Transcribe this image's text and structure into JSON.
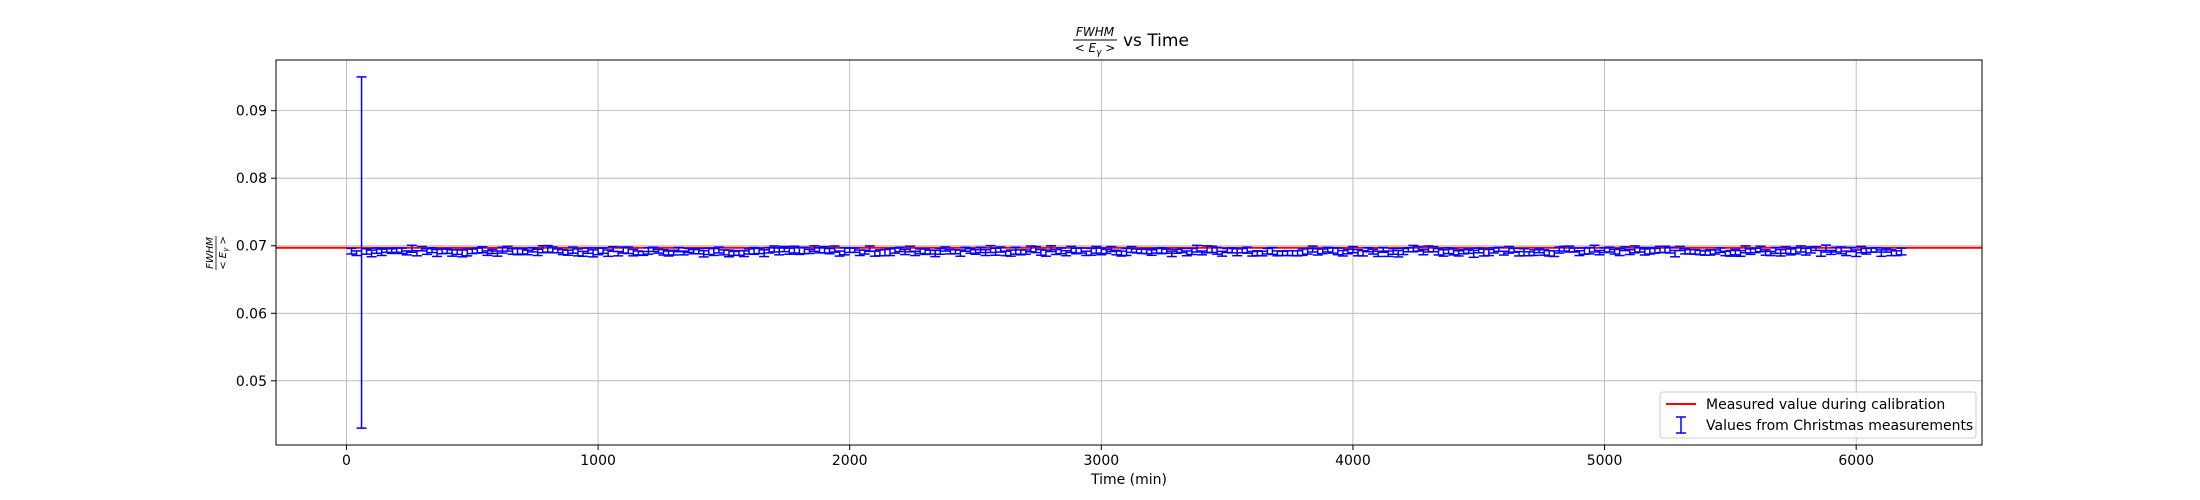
{
  "chart_data": {
    "type": "scatter",
    "title": {
      "numerator": "FWHM",
      "denominator": "< E",
      "denominator_subscript": "γ",
      "denominator_close": " >",
      "suffix": "vs Time"
    },
    "xlabel": "Time (min)",
    "ylabel": {
      "numerator": "FWHM",
      "denominator": "< E",
      "denominator_subscript": "γ",
      "denominator_close": " >"
    },
    "xlim": [
      -280,
      6500
    ],
    "ylim": [
      0.0405,
      0.0975
    ],
    "xticks": [
      0,
      1000,
      2000,
      3000,
      4000,
      5000,
      6000
    ],
    "yticks": [
      0.05,
      0.06,
      0.07,
      0.08,
      0.09
    ],
    "xtick_labels": [
      "0",
      "1000",
      "2000",
      "3000",
      "4000",
      "5000",
      "6000"
    ],
    "ytick_labels": [
      "0.05",
      "0.06",
      "0.07",
      "0.08",
      "0.09"
    ],
    "grid": true,
    "legend_position": "bottom-right",
    "reference_line": {
      "name": "Measured value during calibration",
      "y": 0.0697,
      "color": "#ff0000"
    },
    "errorbar_series": {
      "name": "Values from Christmas measurements",
      "color": "#0000ff",
      "x_start": 20,
      "x_step": 20,
      "x_end": 6180,
      "y_base": 0.0692,
      "y_err_typical": 0.0004,
      "outlier": {
        "x": 60,
        "y": 0.069,
        "yerr_low": 0.026,
        "yerr_high": 0.026
      }
    }
  }
}
